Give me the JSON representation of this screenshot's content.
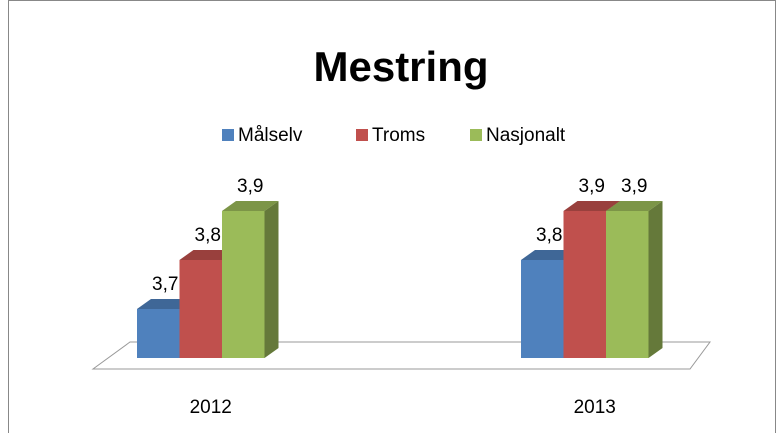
{
  "chart_data": {
    "type": "bar3d",
    "title": "Mestring",
    "categories": [
      "2012",
      "2013"
    ],
    "series": [
      {
        "name": "Målselv",
        "color": "#4f81bd",
        "values": [
          3.7,
          3.8
        ],
        "value_labels": [
          "3,7",
          "3,8"
        ]
      },
      {
        "name": "Troms",
        "color": "#c0504d",
        "values": [
          3.8,
          3.9
        ],
        "value_labels": [
          "3,8",
          "3,9"
        ]
      },
      {
        "name": "Nasjonalt",
        "color": "#9bbb59",
        "values": [
          3.9,
          3.9
        ],
        "value_labels": [
          "3,9",
          "3,9"
        ]
      }
    ],
    "ylim": [
      3.6,
      4.0
    ],
    "legend": "top"
  }
}
